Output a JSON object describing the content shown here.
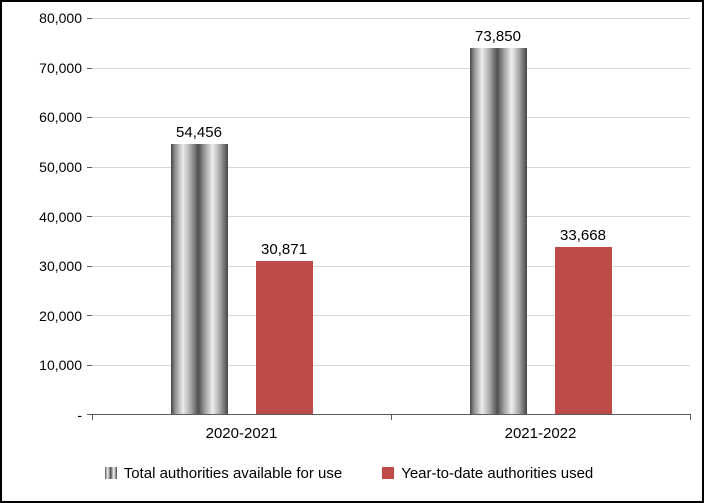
{
  "chart_data": {
    "type": "bar",
    "title": "",
    "categories": [
      "2020-2021",
      "2021-2022"
    ],
    "series": [
      {
        "name": "Total authorities available for use",
        "values": [
          54456,
          73850
        ],
        "labels": [
          "54,456",
          "73,850"
        ],
        "color_style": "striped-gray"
      },
      {
        "name": "Year-to-date authorities used",
        "values": [
          30871,
          33668
        ],
        "labels": [
          "30,871",
          "33,668"
        ],
        "color_style": "solid-red"
      }
    ],
    "ylim": [
      0,
      80000
    ],
    "ytick_values": [
      80000,
      70000,
      60000,
      50000,
      40000,
      30000,
      20000,
      10000,
      0
    ],
    "ytick_labels": [
      "80,000",
      "70,000",
      "60,000",
      "50,000",
      "40,000",
      "30,000",
      "20,000",
      "10,000",
      "-"
    ],
    "grid": "horizontal",
    "legend_position": "bottom",
    "colors": {
      "used_bar": "#be4b48",
      "gridline": "#d6d6d6",
      "axis": "#595959",
      "border": "#000000"
    }
  }
}
